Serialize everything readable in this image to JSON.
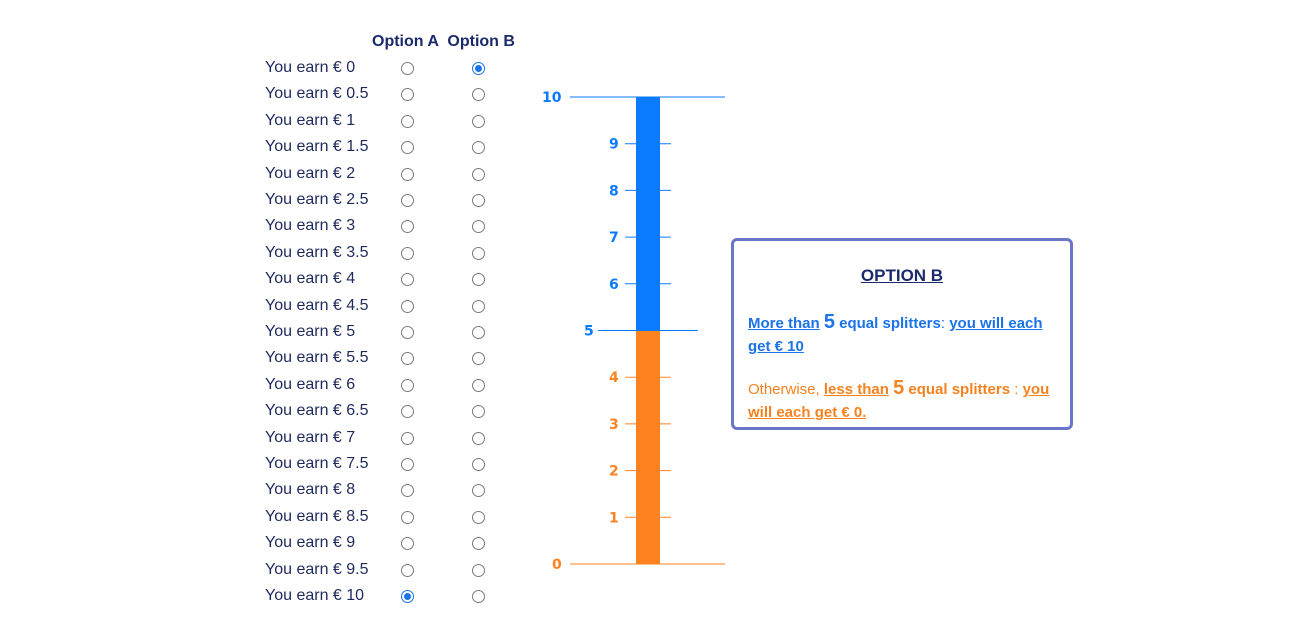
{
  "header": {
    "option_a": "Option A",
    "option_b": "Option B"
  },
  "rows": [
    {
      "label": "You earn € 0",
      "selected": "B"
    },
    {
      "label": "You earn € 0.5",
      "selected": ""
    },
    {
      "label": "You earn € 1",
      "selected": ""
    },
    {
      "label": "You earn € 1.5",
      "selected": ""
    },
    {
      "label": "You earn € 2",
      "selected": ""
    },
    {
      "label": "You earn € 2.5",
      "selected": ""
    },
    {
      "label": "You earn € 3",
      "selected": ""
    },
    {
      "label": "You earn € 3.5",
      "selected": ""
    },
    {
      "label": "You earn € 4",
      "selected": ""
    },
    {
      "label": "You earn € 4.5",
      "selected": ""
    },
    {
      "label": "You earn € 5",
      "selected": ""
    },
    {
      "label": "You earn € 5.5",
      "selected": ""
    },
    {
      "label": "You earn € 6",
      "selected": ""
    },
    {
      "label": "You earn € 6.5",
      "selected": ""
    },
    {
      "label": "You earn € 7",
      "selected": ""
    },
    {
      "label": "You earn € 7.5",
      "selected": ""
    },
    {
      "label": "You earn € 8",
      "selected": ""
    },
    {
      "label": "You earn € 8.5",
      "selected": ""
    },
    {
      "label": "You earn € 9",
      "selected": ""
    },
    {
      "label": "You earn € 9.5",
      "selected": ""
    },
    {
      "label": "You earn € 10",
      "selected": "A"
    }
  ],
  "gauge": {
    "min": 0,
    "max": 10,
    "threshold": 5,
    "ticks": [
      "0",
      "1",
      "2",
      "3",
      "4",
      "5",
      "6",
      "7",
      "8",
      "9",
      "10"
    ],
    "color_above": "#0a7bff",
    "color_below": "#ff8220"
  },
  "info": {
    "title": "OPTION B",
    "p1_part1": "More than",
    "p1_num": "5",
    "p1_part2": "equal splitters",
    "p1_colon": ":",
    "p1_part3": "you will each get € 10",
    "p2_part1": "Otherwise,",
    "p2_part2": "less than",
    "p2_num": "5",
    "p2_part3": "equal splitters",
    "p2_colon": ":",
    "p2_part4": "you will each get € 0."
  }
}
